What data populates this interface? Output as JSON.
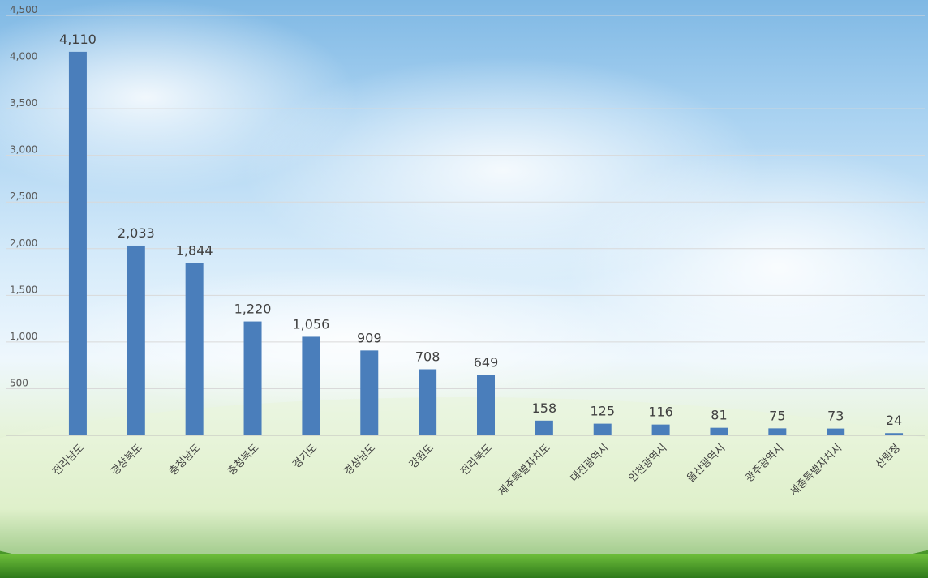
{
  "chart_data": {
    "type": "bar",
    "categories": [
      "전라남도",
      "경상북도",
      "충청남도",
      "충청북도",
      "경기도",
      "경상남도",
      "강원도",
      "전라북도",
      "제주특별자치도",
      "대전광역시",
      "인천광역시",
      "울산광역시",
      "광주광역시",
      "세종특별자치시",
      "산림청"
    ],
    "values": [
      4110,
      2033,
      1844,
      1220,
      1056,
      909,
      708,
      649,
      158,
      125,
      116,
      81,
      75,
      73,
      24
    ],
    "data_labels": [
      "4,110",
      "2,033",
      "1,844",
      "1,220",
      "1,056",
      "909",
      "708",
      "649",
      "158",
      "125",
      "116",
      "81",
      "75",
      "73",
      "24"
    ],
    "y_ticks": [
      0,
      500,
      1000,
      1500,
      2000,
      2500,
      3000,
      3500,
      4000,
      4500
    ],
    "y_tick_labels": [
      "-",
      "500",
      "1,000",
      "1,500",
      "2,000",
      "2,500",
      "3,000",
      "3,500",
      "4,000",
      "4,500"
    ],
    "ylim": [
      0,
      4500
    ],
    "grid": true,
    "bar_color": "#4a7ebb",
    "title": "",
    "xlabel": "",
    "ylabel": ""
  }
}
